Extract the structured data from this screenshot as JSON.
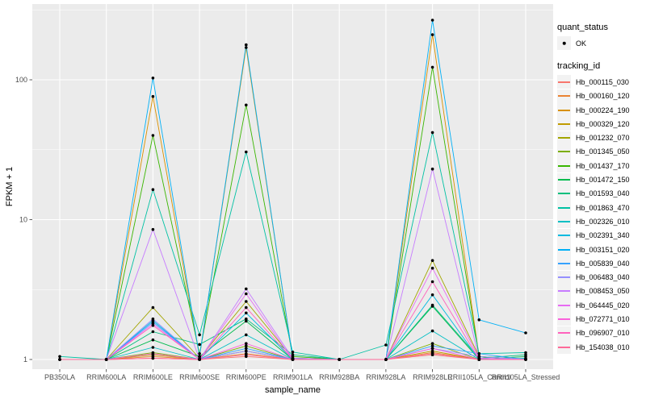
{
  "figure": {
    "background": "#FFFFFF",
    "panel_background": "#EBEBEB",
    "grid_color": "#FFFFFF",
    "axis_text_color": "#4D4D4D",
    "point_color": "#000000"
  },
  "legend": {
    "quant_title": "quant_status",
    "quant_items": [
      {
        "label": "OK",
        "marker": "point"
      }
    ],
    "tracking_title": "tracking_id"
  },
  "chart_data": {
    "type": "line",
    "title": "",
    "xlabel": "sample_name",
    "ylabel": "FPKM + 1",
    "y_scale": "log10",
    "y_ticks": [
      1,
      10,
      100
    ],
    "ylim": [
      0.85,
      350
    ],
    "grid": true,
    "legend_position": "right",
    "point_marker": {
      "shape": "circle",
      "color": "#000000"
    },
    "quant_status": {
      "title": "quant_status",
      "items": [
        "OK"
      ]
    },
    "categories": [
      "PB350LA",
      "RRIM600LA",
      "RRIM600LE",
      "RRIM600SE",
      "RRIM600PE",
      "RRIM901LA",
      "RRIM928BA",
      "RRIM928LA",
      "RRIM928LE",
      "RRII105LA_Control",
      "RRII105LA_Stressed"
    ],
    "series": [
      {
        "name": "Hb_000115_030",
        "color": "#F8766D",
        "values": [
          1,
          1,
          1.02,
          1,
          1.05,
          1,
          1,
          1,
          1.08,
          1,
          1
        ]
      },
      {
        "name": "Hb_000160_120",
        "color": "#EA8331",
        "values": [
          1,
          1,
          1.05,
          1,
          1.1,
          1,
          1,
          1,
          1.12,
          1,
          1
        ]
      },
      {
        "name": "Hb_000224_190",
        "color": "#D89000",
        "values": [
          1,
          1,
          76,
          1.05,
          170,
          1.02,
          1,
          1,
          210,
          1.05,
          1
        ]
      },
      {
        "name": "Hb_000329_120",
        "color": "#C09B00",
        "values": [
          1,
          1,
          1.08,
          1,
          1.15,
          1,
          1,
          1,
          1.15,
          1,
          1
        ]
      },
      {
        "name": "Hb_001232_070",
        "color": "#A3A500",
        "values": [
          1,
          1,
          2.35,
          1.02,
          2.6,
          1.02,
          1,
          1,
          5.1,
          1.05,
          1
        ]
      },
      {
        "name": "Hb_001345_050",
        "color": "#7CAE00",
        "values": [
          1,
          1,
          1.12,
          1,
          1.25,
          1,
          1,
          1,
          1.3,
          1,
          1
        ]
      },
      {
        "name": "Hb_001437_170",
        "color": "#39B600",
        "values": [
          1,
          1,
          40,
          1.1,
          66,
          1.05,
          1,
          1,
          123,
          1.05,
          1
        ]
      },
      {
        "name": "Hb_001472_150",
        "color": "#00BB4E",
        "values": [
          1,
          1,
          1.38,
          1.05,
          1.88,
          1,
          1,
          1,
          2.4,
          1,
          1.05
        ]
      },
      {
        "name": "Hb_001593_040",
        "color": "#00BF7D",
        "values": [
          1,
          1,
          1.58,
          1.28,
          1.95,
          1.08,
          1,
          1,
          2.45,
          1.02,
          1.08
        ]
      },
      {
        "name": "Hb_001863_470",
        "color": "#00C1A3",
        "values": [
          1.05,
          1,
          16.4,
          1.5,
          30.5,
          1.13,
          1,
          1.27,
          42,
          1.1,
          1.12
        ]
      },
      {
        "name": "Hb_002326_010",
        "color": "#00BFC4",
        "values": [
          1,
          1,
          1.22,
          1,
          1.5,
          1,
          1,
          1,
          1.6,
          1,
          1.02
        ]
      },
      {
        "name": "Hb_002391_340",
        "color": "#00BAE0",
        "values": [
          1,
          1,
          1.9,
          1,
          2.15,
          1,
          1,
          1,
          2.9,
          1,
          1
        ]
      },
      {
        "name": "Hb_003151_020",
        "color": "#00B0F6",
        "values": [
          1,
          1,
          103,
          1.05,
          178,
          1.02,
          1,
          1,
          267,
          1.92,
          1.55
        ]
      },
      {
        "name": "Hb_005839_040",
        "color": "#35A2FF",
        "values": [
          1,
          1,
          1.85,
          1,
          1.2,
          1,
          1,
          1,
          1.25,
          1.1,
          1
        ]
      },
      {
        "name": "Hb_006483_040",
        "color": "#9590FF",
        "values": [
          1,
          1,
          1.95,
          1,
          1.15,
          1,
          1,
          1,
          1.2,
          1.05,
          1
        ]
      },
      {
        "name": "Hb_008453_050",
        "color": "#C77CFF",
        "values": [
          1,
          1,
          8.5,
          1,
          3.2,
          1.02,
          1,
          1,
          23,
          1.02,
          1
        ]
      },
      {
        "name": "Hb_064445_020",
        "color": "#E76BF3",
        "values": [
          1,
          1,
          1.8,
          1,
          2.95,
          1,
          1,
          1,
          4.5,
          1.02,
          1
        ]
      },
      {
        "name": "Hb_072771_010",
        "color": "#FA62DB",
        "values": [
          1,
          1,
          1.1,
          1,
          1.3,
          1,
          1,
          1,
          1.2,
          1,
          1
        ]
      },
      {
        "name": "Hb_096907_010",
        "color": "#FF62BC",
        "values": [
          1,
          1,
          1.75,
          1,
          2.35,
          1,
          1,
          1,
          3.6,
          1,
          1
        ]
      },
      {
        "name": "Hb_154038_010",
        "color": "#FF6A98",
        "values": [
          1,
          1,
          1.02,
          1,
          1.08,
          1,
          1,
          1,
          1.1,
          1,
          1
        ]
      }
    ]
  }
}
